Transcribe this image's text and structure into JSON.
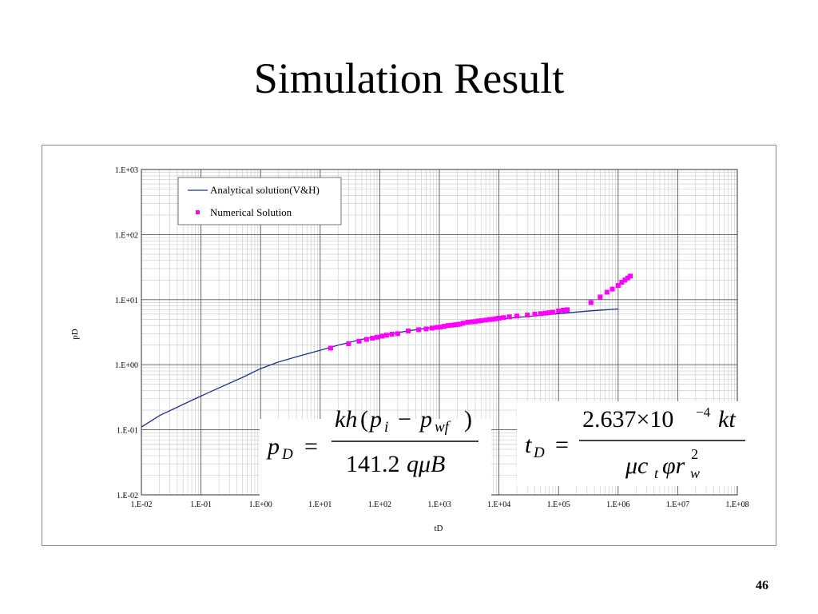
{
  "slide": {
    "title": "Simulation Result",
    "page_number": "46"
  },
  "chart_data": {
    "type": "scatter",
    "title": "",
    "xlabel": "tD",
    "ylabel": "pD",
    "x_scale": "log",
    "y_scale": "log",
    "xlim": [
      0.01,
      100000000
    ],
    "ylim": [
      0.01,
      1000
    ],
    "grid": true,
    "legend_position": "top-left",
    "x_tick_labels": [
      "1.E-02",
      "1.E-01",
      "1.E+00",
      "1.E+01",
      "1.E+02",
      "1.E+03",
      "1.E+04",
      "1.E+05",
      "1.E+06",
      "1.E+07",
      "1.E+08"
    ],
    "y_tick_labels": [
      "1.E-02",
      "1.E-01",
      "1.E+00",
      "1.E+01",
      "1.E+02",
      "1.E+03"
    ],
    "series": [
      {
        "name": "Analytical solution(V&H)",
        "kind": "line",
        "color": "#1f2f8f",
        "x": [
          0.01,
          0.02,
          0.05,
          0.1,
          0.2,
          0.5,
          1,
          2,
          5,
          10,
          20,
          50,
          100,
          300,
          1000,
          3000,
          10000,
          30000,
          100000,
          300000,
          1000000
        ],
        "y": [
          0.11,
          0.165,
          0.245,
          0.33,
          0.44,
          0.64,
          0.87,
          1.1,
          1.4,
          1.67,
          2.0,
          2.45,
          2.78,
          3.32,
          3.88,
          4.4,
          5.0,
          5.5,
          6.1,
          6.65,
          7.2
        ]
      },
      {
        "name": "Numerical Solution",
        "kind": "scatter",
        "color": "#ff00ff",
        "x": [
          15,
          30,
          45,
          60,
          75,
          90,
          110,
          130,
          160,
          200,
          300,
          450,
          600,
          750,
          900,
          1050,
          1200,
          1400,
          1600,
          1800,
          2000,
          2200,
          2500,
          3000,
          3500,
          4000,
          4500,
          5000,
          6000,
          7000,
          8000,
          9000,
          10000,
          12000,
          15000,
          20000,
          30000,
          40000,
          50000,
          60000,
          70000,
          80000,
          100000,
          120000,
          140000,
          350000,
          500000,
          650000,
          800000,
          1000000,
          1150000,
          1300000,
          1450000,
          1600000
        ],
        "y": [
          1.8,
          2.1,
          2.3,
          2.45,
          2.55,
          2.65,
          2.75,
          2.85,
          2.95,
          3.0,
          3.3,
          3.45,
          3.55,
          3.65,
          3.75,
          3.8,
          3.9,
          4.0,
          4.05,
          4.1,
          4.15,
          4.2,
          4.35,
          4.5,
          4.55,
          4.6,
          4.7,
          4.75,
          4.85,
          4.95,
          5.0,
          5.1,
          5.2,
          5.3,
          5.45,
          5.6,
          5.8,
          6.0,
          6.1,
          6.2,
          6.3,
          6.4,
          6.7,
          6.9,
          7.0,
          9.0,
          11.0,
          13.0,
          14.5,
          16.5,
          18.5,
          20.0,
          21.5,
          23.0
        ]
      }
    ]
  },
  "equations": {
    "pd": {
      "lhs_var": "p",
      "lhs_sub": "D",
      "eq": "=",
      "num_kh": "kh",
      "num_open": "(",
      "num_p1": "p",
      "num_p1_sub": "i",
      "num_minus": "−",
      "num_p2": "p",
      "num_p2_sub": "wf",
      "num_close": ")",
      "den_const": "141.2",
      "den_vars": "qμB"
    },
    "td": {
      "lhs_var": "t",
      "lhs_sub": "D",
      "eq": "=",
      "num_const": "2.637×10",
      "num_exp": "−4",
      "num_vars": "kt",
      "den_mu": "μc",
      "den_sub_t": "t",
      "den_phi": "φr",
      "den_sub_w": "w",
      "den_sup_2": "2"
    }
  }
}
